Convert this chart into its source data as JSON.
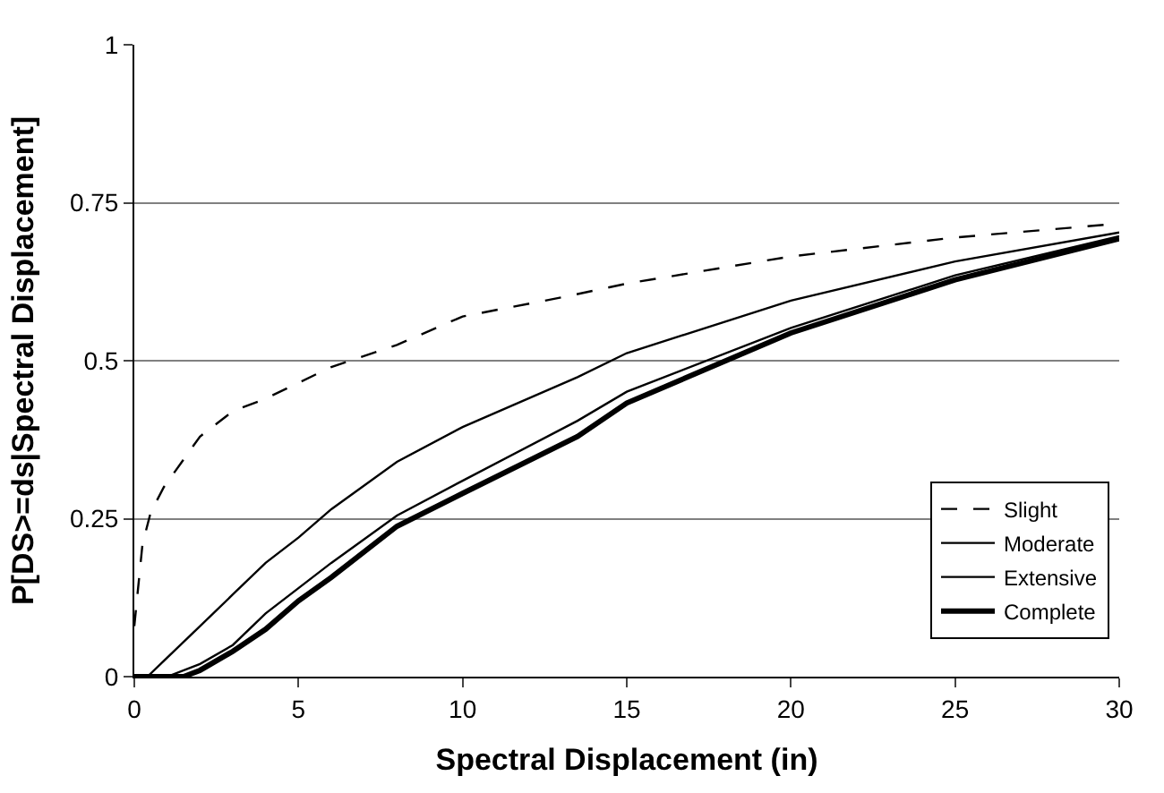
{
  "chart_data": {
    "type": "line",
    "xlabel": "Spectral Displacement (in)",
    "ylabel": "P[DS>=ds|Spectral Displacement]",
    "xlim": [
      0,
      30
    ],
    "xticks": [
      0,
      5,
      10,
      15,
      20,
      25,
      30
    ],
    "ylim": [
      0,
      1
    ],
    "yticks": [
      0,
      0.25,
      0.5,
      0.75,
      1
    ],
    "grid": "y",
    "legend": "bottom right",
    "marker": "none",
    "series": [
      {
        "name": "Slight",
        "color": "#000000",
        "line_style": "dashed",
        "x": [
          0,
          0.25,
          0.5,
          0.9,
          2,
          3,
          4,
          5,
          6,
          8,
          10,
          13,
          15,
          20,
          25,
          30
        ],
        "values": [
          0.08,
          0.21,
          0.26,
          0.3,
          0.38,
          0.42,
          0.44,
          0.465,
          0.49,
          0.525,
          0.57,
          0.6,
          0.622,
          0.665,
          0.695,
          0.717
        ]
      },
      {
        "name": "Moderate",
        "color": "#000000",
        "line_style": "solid",
        "x": [
          0,
          0.4,
          0.8,
          2,
          3,
          4,
          5,
          6,
          8,
          10,
          13.5,
          15,
          20,
          25,
          30
        ],
        "values": [
          0,
          0,
          0.02,
          0.08,
          0.13,
          0.18,
          0.22,
          0.265,
          0.34,
          0.395,
          0.474,
          0.512,
          0.595,
          0.657,
          0.703
        ]
      },
      {
        "name": "Extensive",
        "color": "#000000",
        "line_style": "solid",
        "x": [
          0,
          1,
          2,
          3,
          4,
          5,
          6,
          8,
          10,
          13.5,
          15,
          20,
          25,
          30
        ],
        "values": [
          0,
          0,
          0.02,
          0.05,
          0.1,
          0.14,
          0.18,
          0.255,
          0.31,
          0.405,
          0.451,
          0.552,
          0.635,
          0.697
        ]
      },
      {
        "name": "Complete",
        "color": "#000000",
        "line_style": "solid",
        "x": [
          0,
          1.5,
          2,
          3,
          4,
          5,
          6,
          8,
          10,
          13.5,
          15,
          20,
          25,
          30
        ],
        "values": [
          0,
          0,
          0.01,
          0.04,
          0.075,
          0.12,
          0.157,
          0.238,
          0.29,
          0.38,
          0.433,
          0.544,
          0.628,
          0.693
        ]
      }
    ]
  }
}
